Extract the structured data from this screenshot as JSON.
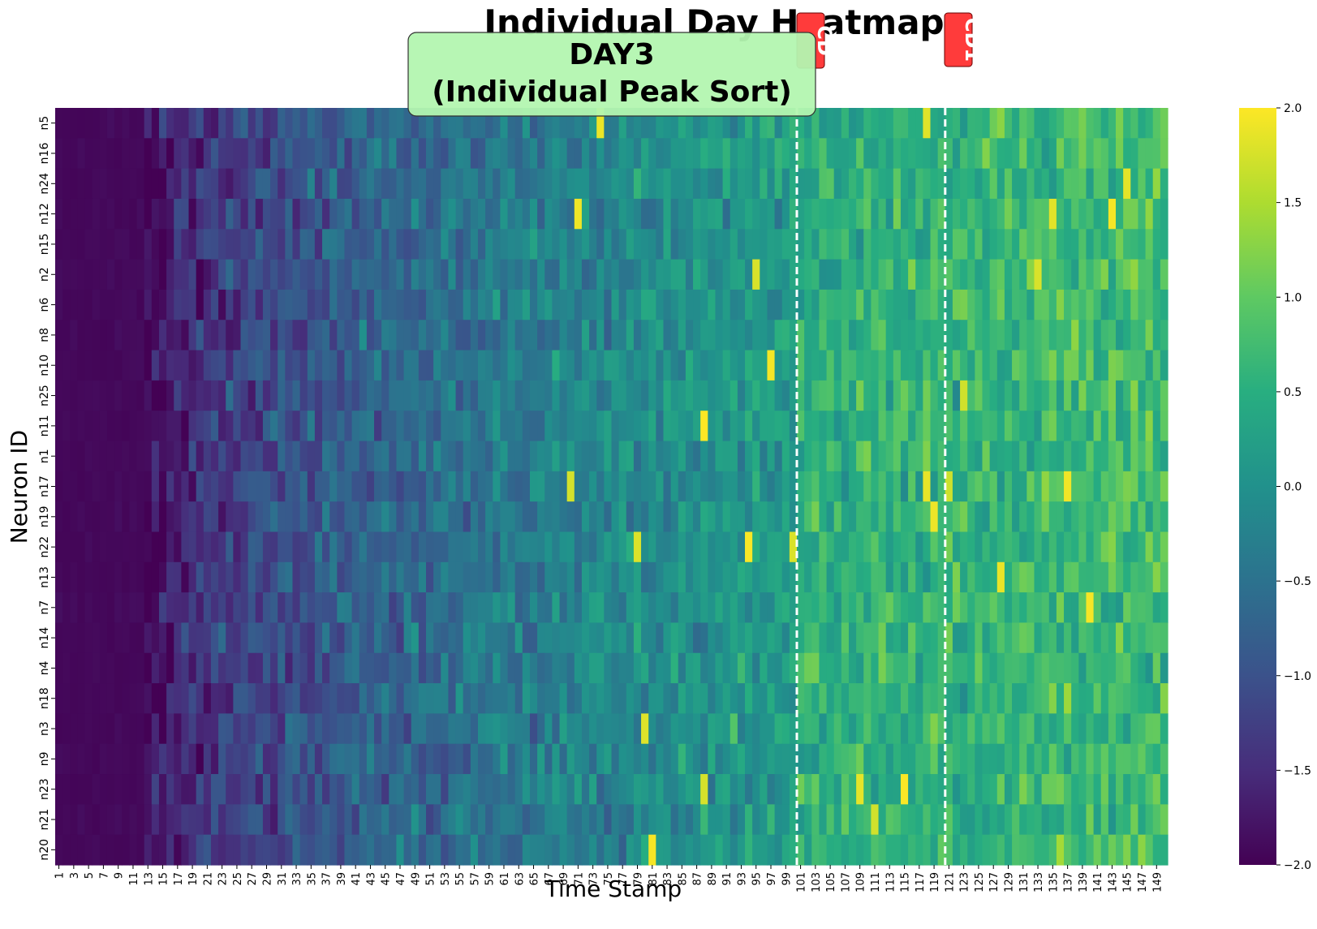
{
  "chart_data": {
    "type": "heatmap",
    "title": "Individual Day Heatmap",
    "subtitle_line1": "DAY3",
    "subtitle_line2": "(Individual Peak Sort)",
    "xlabel": "Time Stamp",
    "ylabel": "Neuron ID",
    "rows": [
      "n5",
      "n16",
      "n24",
      "n12",
      "n15",
      "n2",
      "n6",
      "n8",
      "n10",
      "n25",
      "n11",
      "n1",
      "n17",
      "n19",
      "n22",
      "n13",
      "n7",
      "n14",
      "n4",
      "n18",
      "n3",
      "n9",
      "n23",
      "n21",
      "n20"
    ],
    "x_ticks": [
      1,
      3,
      5,
      7,
      9,
      11,
      13,
      15,
      17,
      19,
      21,
      23,
      25,
      27,
      29,
      31,
      33,
      35,
      37,
      39,
      41,
      43,
      45,
      47,
      49,
      51,
      53,
      55,
      57,
      59,
      61,
      63,
      65,
      67,
      69,
      71,
      73,
      75,
      77,
      79,
      81,
      83,
      85,
      87,
      89,
      91,
      93,
      95,
      97,
      99,
      101,
      103,
      105,
      107,
      109,
      111,
      113,
      115,
      117,
      119,
      121,
      123,
      125,
      127,
      129,
      131,
      133,
      135,
      137,
      139,
      141,
      143,
      145,
      147,
      149
    ],
    "columns": 150,
    "colormap": "viridis",
    "colorbar": {
      "min": -2.0,
      "max": 2.0,
      "ticks": [
        "2.0",
        "1.5",
        "1.0",
        "0.5",
        "0.0",
        "−0.5",
        "−1.0",
        "−1.5",
        "−2.0"
      ]
    },
    "markers": [
      {
        "label": "CD",
        "at_column": 101
      },
      {
        "label": "CD1",
        "at_column": 121
      }
    ],
    "value_trend": "low (about -2) at time stamps 1-15, rising to around 0 to 0.5 by 40-60 and 0.3 to 1.5 after 100, with sparse peaks near 2.0"
  }
}
